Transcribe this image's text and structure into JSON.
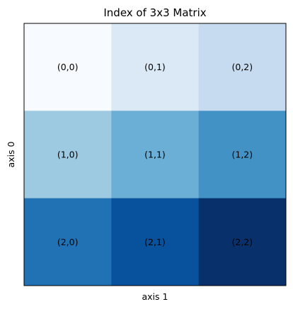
{
  "chart_data": {
    "type": "heatmap",
    "title": "Index of 3x3 Matrix",
    "xlabel": "axis 1",
    "ylabel": "axis 0",
    "grid": false,
    "colormap": "Blues",
    "rows": 3,
    "cols": 3,
    "values": [
      [
        0,
        1,
        2
      ],
      [
        3,
        4,
        5
      ],
      [
        6,
        7,
        8
      ]
    ],
    "cell_labels": [
      [
        "(0,0)",
        "(0,1)",
        "(0,2)"
      ],
      [
        "(1,0)",
        "(1,1)",
        "(1,2)"
      ],
      [
        "(2,0)",
        "(2,1)",
        "(2,2)"
      ]
    ],
    "cell_colors": [
      [
        "#f7fbff",
        "#dbe9f6",
        "#c6dbef"
      ],
      [
        "#9ecae1",
        "#6baed6",
        "#4292c6"
      ],
      [
        "#2171b5",
        "#08519c",
        "#08306b"
      ]
    ]
  }
}
